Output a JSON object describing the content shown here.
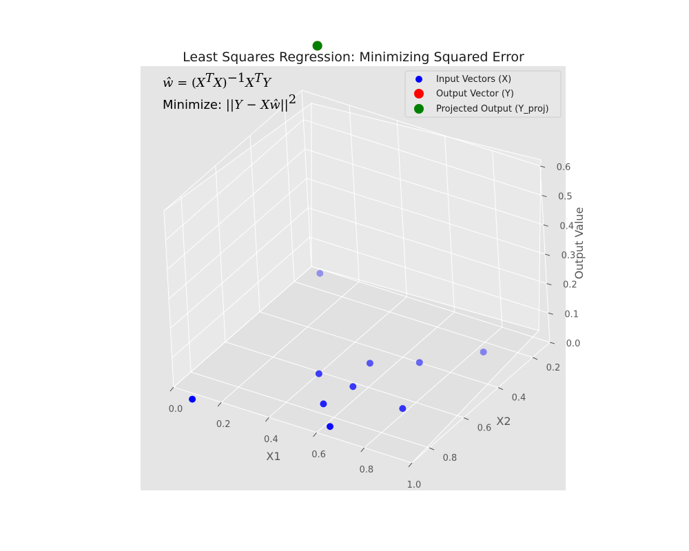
{
  "chart_data": {
    "type": "scatter",
    "projection": "3d",
    "title": "Least Squares Regression: Minimizing Squared Error",
    "xlabel": "X1",
    "ylabel": "X2",
    "zlabel": "Output Value",
    "xlim": [
      0.0,
      1.0
    ],
    "ylim": [
      0.1,
      0.9
    ],
    "zlim": [
      0.0,
      0.6
    ],
    "xticks": [
      "0.0",
      "0.2",
      "0.4",
      "0.6",
      "0.8",
      "1.0"
    ],
    "yticks": [
      "0.2",
      "0.4",
      "0.6",
      "0.8"
    ],
    "zticks": [
      "0.0",
      "0.1",
      "0.2",
      "0.3",
      "0.4",
      "0.5",
      "0.6"
    ],
    "grid": true,
    "legend_position": "top-right",
    "annotations": [
      {
        "id": "formula1",
        "text": "ŵ = (XᵀX)⁻¹XᵀY"
      },
      {
        "id": "formula2",
        "text": "Minimize: ||Y − Xŵ||²"
      }
    ],
    "series": [
      {
        "name": "Input Vectors (X)",
        "color": "#0000ff",
        "points": [
          {
            "x": 0.05,
            "y": 0.12,
            "z": 0.0
          },
          {
            "x": 0.83,
            "y": 0.25,
            "z": 0.0
          },
          {
            "x": 0.67,
            "y": 0.4,
            "z": 0.0
          },
          {
            "x": 0.52,
            "y": 0.48,
            "z": 0.0
          },
          {
            "x": 0.4,
            "y": 0.61,
            "z": 0.0
          },
          {
            "x": 0.55,
            "y": 0.62,
            "z": 0.0
          },
          {
            "x": 0.52,
            "y": 0.75,
            "z": 0.0
          },
          {
            "x": 0.78,
            "y": 0.65,
            "z": 0.0
          },
          {
            "x": 0.62,
            "y": 0.85,
            "z": 0.0
          },
          {
            "x": 0.1,
            "y": 0.93,
            "z": 0.0
          }
        ]
      },
      {
        "name": "Output Vector (Y)",
        "color": "#ff0000",
        "points": [
          {
            "x": 0.0,
            "y": 0.0,
            "z": 0.7
          }
        ]
      },
      {
        "name": "Projected Output (Y_proj)",
        "color": "#008000",
        "points": [
          {
            "x": 0.0,
            "y": 0.0,
            "z": 0.7
          }
        ]
      }
    ]
  }
}
